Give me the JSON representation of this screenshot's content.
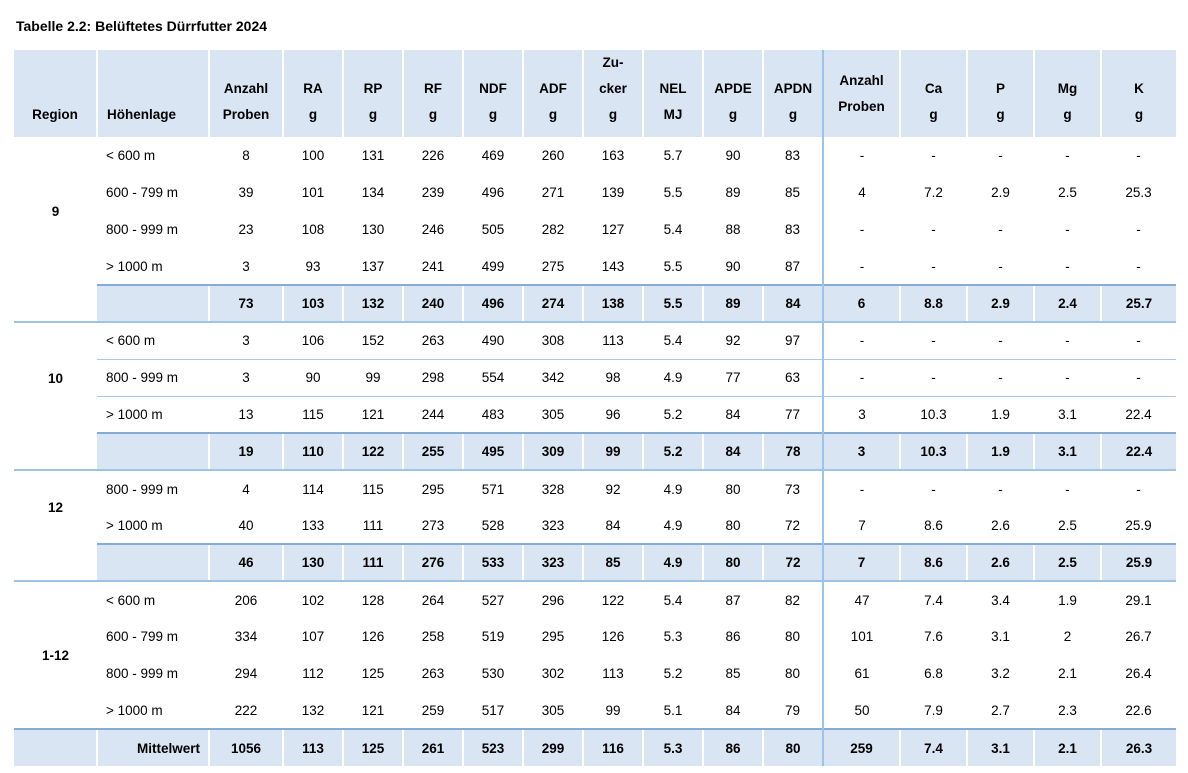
{
  "title": "Tabelle 2.2: Belüftetes Dürrfutter 2024",
  "colors": {
    "row_shade": "#d9e5f2",
    "line_strong": "#84acd6",
    "line_light": "#9dc3e6",
    "row_separator": "#a9c9e8",
    "text": "#000000"
  },
  "table": {
    "header": {
      "region": "Region",
      "hoehenlage": "Höhenlage",
      "cols": [
        {
          "key": "anzahl-proben",
          "lines": [
            "Anzahl",
            "Proben"
          ]
        },
        {
          "key": "ra",
          "lines": [
            "RA",
            "g"
          ]
        },
        {
          "key": "rp",
          "lines": [
            "RP",
            "g"
          ]
        },
        {
          "key": "rf",
          "lines": [
            "RF",
            "g"
          ]
        },
        {
          "key": "ndf",
          "lines": [
            "NDF",
            "g"
          ]
        },
        {
          "key": "adf",
          "lines": [
            "ADF",
            "g"
          ]
        },
        {
          "key": "zucker",
          "lines": [
            "Zu-",
            "cker",
            "g"
          ]
        },
        {
          "key": "nel",
          "lines": [
            "NEL",
            "MJ"
          ]
        },
        {
          "key": "apde",
          "lines": [
            "APDE",
            "g"
          ]
        },
        {
          "key": "apdn",
          "lines": [
            "APDN",
            "g"
          ]
        },
        {
          "key": "anzahl-proben-mineral",
          "lines": [
            "Anzahl",
            "Proben"
          ],
          "divider": true,
          "valign": "middle"
        },
        {
          "key": "ca",
          "lines": [
            "Ca",
            "g"
          ]
        },
        {
          "key": "p",
          "lines": [
            "P",
            "g"
          ]
        },
        {
          "key": "mg",
          "lines": [
            "Mg",
            "g"
          ]
        },
        {
          "key": "k",
          "lines": [
            "K",
            "g"
          ]
        }
      ]
    },
    "blocks": [
      {
        "region": "9",
        "separators": false,
        "rows": [
          {
            "hoehenlage": "< 600 m",
            "values": [
              "8",
              "100",
              "131",
              "226",
              "469",
              "260",
              "163",
              "5.7",
              "90",
              "83",
              "-",
              "-",
              "-",
              "-",
              "-"
            ]
          },
          {
            "hoehenlage": "600 - 799 m",
            "values": [
              "39",
              "101",
              "134",
              "239",
              "496",
              "271",
              "139",
              "5.5",
              "89",
              "85",
              "4",
              "7.2",
              "2.9",
              "2.5",
              "25.3"
            ]
          },
          {
            "hoehenlage": "800 - 999 m",
            "values": [
              "23",
              "108",
              "130",
              "246",
              "505",
              "282",
              "127",
              "5.4",
              "88",
              "83",
              "-",
              "-",
              "-",
              "-",
              "-"
            ]
          },
          {
            "hoehenlage": "> 1000 m",
            "values": [
              "3",
              "93",
              "137",
              "241",
              "499",
              "275",
              "143",
              "5.5",
              "90",
              "87",
              "-",
              "-",
              "-",
              "-",
              "-"
            ]
          }
        ],
        "summary": {
          "label": "",
          "full_shade": false,
          "values": [
            "73",
            "103",
            "132",
            "240",
            "496",
            "274",
            "138",
            "5.5",
            "89",
            "84",
            "6",
            "8.8",
            "2.9",
            "2.4",
            "25.7"
          ]
        }
      },
      {
        "region": "10",
        "separators": true,
        "rows": [
          {
            "hoehenlage": "< 600 m",
            "values": [
              "3",
              "106",
              "152",
              "263",
              "490",
              "308",
              "113",
              "5.4",
              "92",
              "97",
              "-",
              "-",
              "-",
              "-",
              "-"
            ]
          },
          {
            "hoehenlage": "800 - 999 m",
            "values": [
              "3",
              "90",
              "99",
              "298",
              "554",
              "342",
              "98",
              "4.9",
              "77",
              "63",
              "-",
              "-",
              "-",
              "-",
              "-"
            ]
          },
          {
            "hoehenlage": "> 1000 m",
            "values": [
              "13",
              "115",
              "121",
              "244",
              "483",
              "305",
              "96",
              "5.2",
              "84",
              "77",
              "3",
              "10.3",
              "1.9",
              "3.1",
              "22.4"
            ]
          }
        ],
        "summary": {
          "label": "",
          "full_shade": false,
          "values": [
            "19",
            "110",
            "122",
            "255",
            "495",
            "309",
            "99",
            "5.2",
            "84",
            "78",
            "3",
            "10.3",
            "1.9",
            "3.1",
            "22.4"
          ]
        }
      },
      {
        "region": "12",
        "separators": false,
        "rows": [
          {
            "hoehenlage": "800 - 999 m",
            "values": [
              "4",
              "114",
              "115",
              "295",
              "571",
              "328",
              "92",
              "4.9",
              "80",
              "73",
              "-",
              "-",
              "-",
              "-",
              "-"
            ]
          },
          {
            "hoehenlage": "> 1000 m",
            "values": [
              "40",
              "133",
              "111",
              "273",
              "528",
              "323",
              "84",
              "4.9",
              "80",
              "72",
              "7",
              "8.6",
              "2.6",
              "2.5",
              "25.9"
            ]
          }
        ],
        "summary": {
          "label": "",
          "full_shade": false,
          "values": [
            "46",
            "130",
            "111",
            "276",
            "533",
            "323",
            "85",
            "4.9",
            "80",
            "72",
            "7",
            "8.6",
            "2.6",
            "2.5",
            "25.9"
          ]
        }
      },
      {
        "region": "1-12",
        "separators": false,
        "rows": [
          {
            "hoehenlage": "< 600 m",
            "values": [
              "206",
              "102",
              "128",
              "264",
              "527",
              "296",
              "122",
              "5.4",
              "87",
              "82",
              "47",
              "7.4",
              "3.4",
              "1.9",
              "29.1"
            ]
          },
          {
            "hoehenlage": "600 - 799 m",
            "values": [
              "334",
              "107",
              "126",
              "258",
              "519",
              "295",
              "126",
              "5.3",
              "86",
              "80",
              "101",
              "7.6",
              "3.1",
              "2",
              "26.7"
            ]
          },
          {
            "hoehenlage": "800 - 999 m",
            "values": [
              "294",
              "112",
              "125",
              "263",
              "530",
              "302",
              "113",
              "5.2",
              "85",
              "80",
              "61",
              "6.8",
              "3.2",
              "2.1",
              "26.4"
            ]
          },
          {
            "hoehenlage": "> 1000 m",
            "values": [
              "222",
              "132",
              "121",
              "259",
              "517",
              "305",
              "99",
              "5.1",
              "84",
              "79",
              "50",
              "7.9",
              "2.7",
              "2.3",
              "22.6"
            ]
          }
        ],
        "summary": {
          "label": "Mittelwert",
          "full_shade": true,
          "values": [
            "1056",
            "113",
            "125",
            "261",
            "523",
            "299",
            "116",
            "5.3",
            "86",
            "80",
            "259",
            "7.4",
            "3.1",
            "2.1",
            "26.3"
          ]
        }
      }
    ]
  }
}
